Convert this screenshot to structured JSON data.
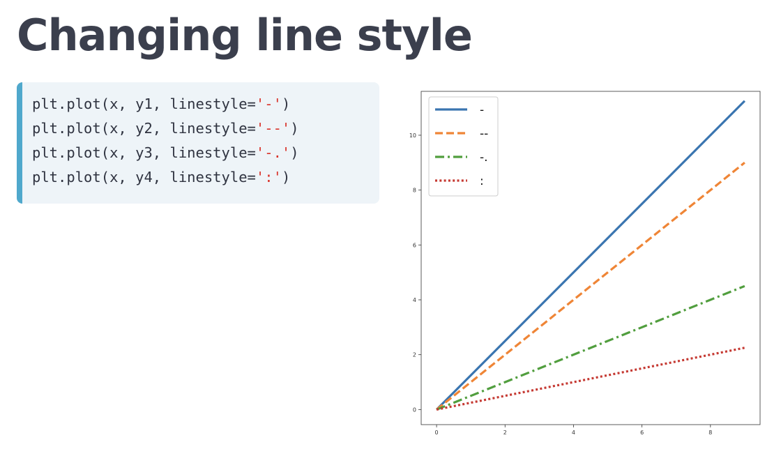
{
  "slide": {
    "title": "Changing line style"
  },
  "code": {
    "lines": [
      {
        "prefix": "plt.plot(x, y1, linestyle=",
        "value": "'-'",
        "suffix": ")"
      },
      {
        "prefix": "plt.plot(x, y2, linestyle=",
        "value": "'--'",
        "suffix": ")"
      },
      {
        "prefix": "plt.plot(x, y3, linestyle=",
        "value": "'-.'",
        "suffix": ")"
      },
      {
        "prefix": "plt.plot(x, y4, linestyle=",
        "value": "':'",
        "suffix": ")"
      }
    ],
    "colors": {
      "text": "#2f3340",
      "string": "#d9342b",
      "accent": "#4fa8cc",
      "background": "#eef4f8"
    }
  },
  "chart_data": {
    "type": "line",
    "title": "",
    "xlabel": "",
    "ylabel": "",
    "xlim": [
      -0.45,
      9.45
    ],
    "ylim": [
      -0.55,
      11.6
    ],
    "xticks": [
      0,
      2,
      4,
      6,
      8
    ],
    "yticks": [
      0,
      2,
      4,
      6,
      8,
      10
    ],
    "grid": false,
    "legend_position": "top-left",
    "series": [
      {
        "name": "-",
        "linestyle": "solid",
        "color": "#3a75b0",
        "x": [
          0,
          9
        ],
        "y": [
          0,
          11.25
        ]
      },
      {
        "name": "--",
        "linestyle": "dashed",
        "color": "#ef8536",
        "x": [
          0,
          9
        ],
        "y": [
          0,
          9.0
        ]
      },
      {
        "name": "-.",
        "linestyle": "dashdot",
        "color": "#519e3e",
        "x": [
          0,
          9
        ],
        "y": [
          0,
          4.5
        ]
      },
      {
        "name": ":",
        "linestyle": "dotted",
        "color": "#c53932",
        "x": [
          0,
          9
        ],
        "y": [
          0,
          2.25
        ]
      }
    ]
  }
}
